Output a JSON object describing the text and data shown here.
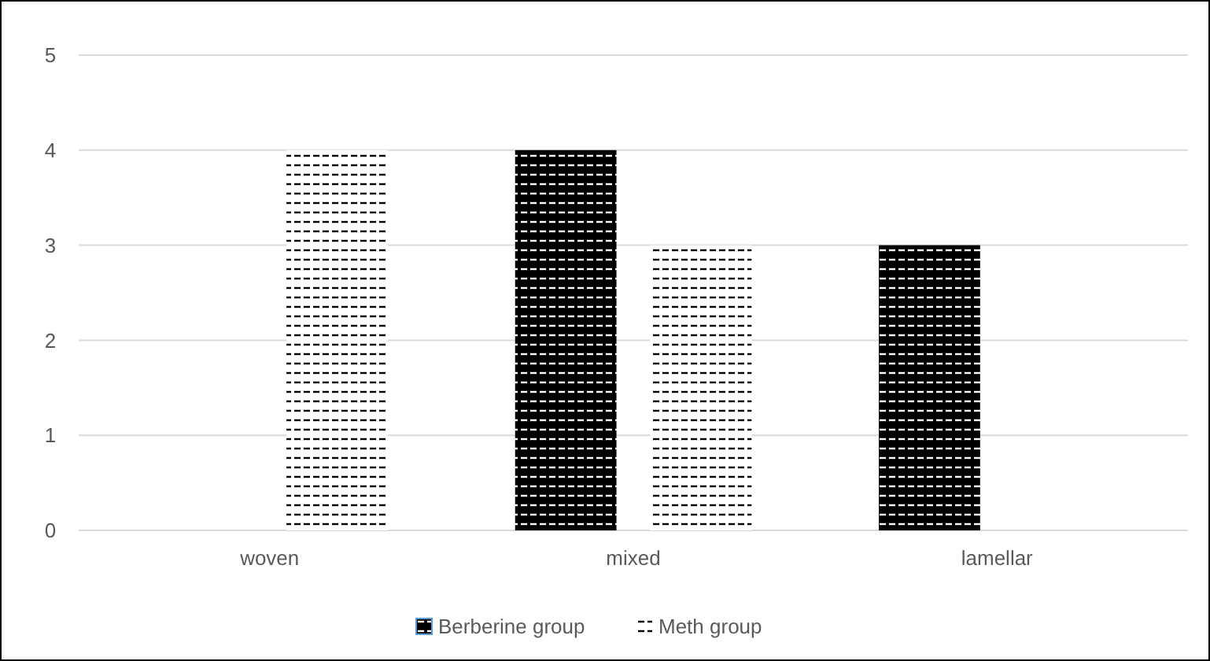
{
  "chart_data": {
    "type": "bar",
    "categories": [
      "woven",
      "mixed",
      "lamellar"
    ],
    "series": [
      {
        "name": "Berberine group",
        "color": "#000000",
        "values": [
          0,
          4,
          3
        ]
      },
      {
        "name": "Meth group",
        "color": "#ffffff",
        "values": [
          4,
          3,
          0
        ]
      }
    ],
    "ylim": [
      0,
      5
    ],
    "yticks": [
      0,
      1,
      2,
      3,
      4,
      5
    ],
    "grid": "y",
    "legend": "bottom"
  }
}
